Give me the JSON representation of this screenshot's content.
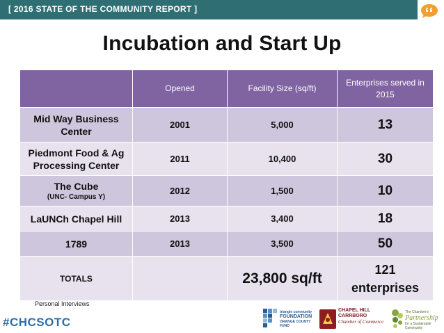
{
  "header": {
    "banner_text": "[ 2016 STATE OF THE COMMUNITY REPORT ]",
    "bubble_icon": "speech-bubble-icon",
    "accent_color": "#2f6f73"
  },
  "title": "Incubation and Start Up",
  "table": {
    "columns": [
      "",
      "Opened",
      "Facility Size (sq/ft)",
      "Enterprises served in 2015"
    ],
    "header_color": "#8064a2",
    "row_colors": [
      "#cec6dc",
      "#e7e2ee"
    ],
    "rows": [
      {
        "name": "Mid Way Business Center",
        "sub": "",
        "opened": "2001",
        "size": "5,000",
        "enterprises": "13"
      },
      {
        "name": "Piedmont Food & Ag Processing Center",
        "sub": "",
        "opened": "2011",
        "size": "10,400",
        "enterprises": "30"
      },
      {
        "name": "The Cube",
        "sub": "(UNC- Campus Y)",
        "opened": "2012",
        "size": "1,500",
        "enterprises": "10"
      },
      {
        "name": "LaUNCh Chapel Hill",
        "sub": "",
        "opened": "2013",
        "size": "3,400",
        "enterprises": "18"
      },
      {
        "name": "1789",
        "sub": "",
        "opened": "2013",
        "size": "3,500",
        "enterprises": "50"
      }
    ],
    "totals": {
      "label": "TOTALS",
      "opened": "",
      "size": "23,800 sq/ft",
      "enterprises_count": "121",
      "enterprises_label": "enterprises"
    }
  },
  "source_note": "Personal Interviews",
  "hashtag": "#CHCSOTC",
  "logos": {
    "tcf": {
      "line1": "triangle community",
      "line2": "FOUNDATION",
      "line3": "ORANGE COUNTY FUND"
    },
    "chcc": {
      "line1": "CHAPEL HILL",
      "line2": "CARRBORO",
      "line3": "Chamber of Commerce"
    },
    "tcp": {
      "line1": "The Chamber's",
      "line2": "Partnership",
      "line3": "for a Sustainable Community"
    }
  }
}
